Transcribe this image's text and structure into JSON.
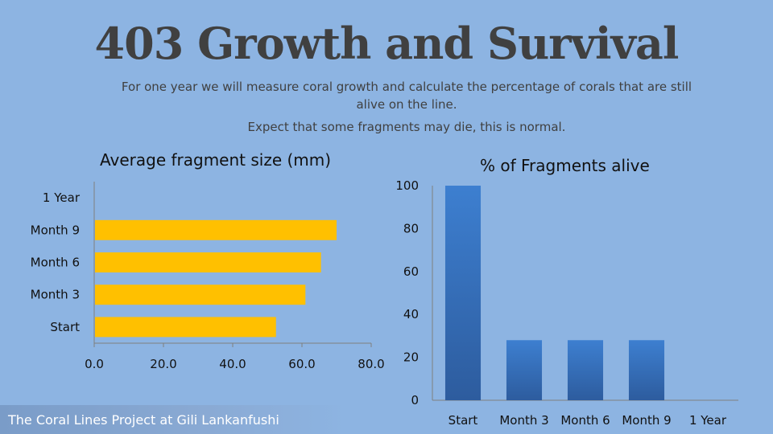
{
  "page": {
    "title": "403 Growth and Survival",
    "subtitle_line1": "For one year we will measure coral growth and calculate the percentage of corals that are still alive on the line.",
    "subtitle_line2": "Expect that some fragments may die, this is normal.",
    "footer": "The Coral Lines Project at Gili Lankanfushi"
  },
  "chart_data": [
    {
      "type": "bar",
      "orientation": "horizontal",
      "title": "Average fragment size (mm)",
      "categories": [
        "Start",
        "Month 3",
        "Month 6",
        "Month 9",
        "1 Year"
      ],
      "values": [
        52.5,
        61,
        65.5,
        70,
        null
      ],
      "xlim": [
        0,
        80
      ],
      "ticks": [
        "0.0",
        "20.0",
        "40.0",
        "60.0",
        "80.0"
      ],
      "color": "#ffc000",
      "grid": false,
      "legend": "none"
    },
    {
      "type": "bar",
      "orientation": "vertical",
      "title": "% of Fragments alive",
      "categories": [
        "Start",
        "Month 3",
        "Month 6",
        "Month 9",
        "1 Year"
      ],
      "values": [
        100,
        28,
        28,
        28,
        null
      ],
      "ylim": [
        0,
        100
      ],
      "ticks": [
        "0",
        "20",
        "40",
        "60",
        "80",
        "100"
      ],
      "color": "#3a6fb8",
      "grid": false,
      "legend": "none"
    }
  ]
}
